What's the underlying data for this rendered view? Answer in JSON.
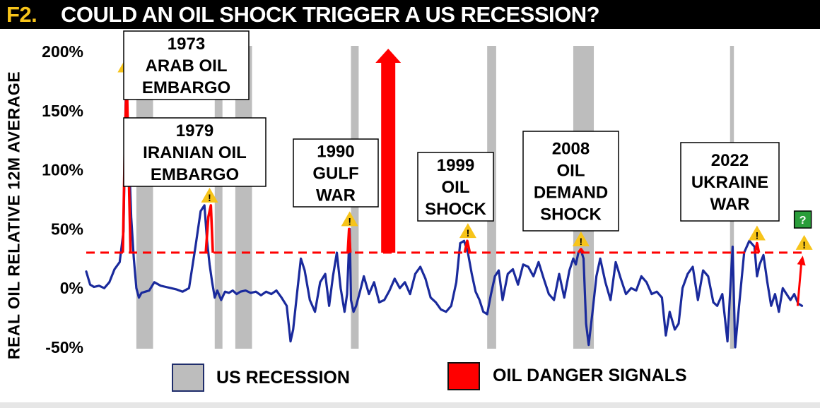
{
  "title": {
    "prefix": "F2.",
    "text": "COULD AN OIL SHOCK TRIGGER A US RECESSION?"
  },
  "chart_data": {
    "type": "line",
    "title": "COULD AN OIL SHOCK TRIGGER A US RECESSION?",
    "ylabel": "REAL OIL RELATIVE 12M AVERAGE",
    "xlabel": "",
    "ylim": [
      -50,
      200
    ],
    "yticks": [
      200,
      150,
      100,
      50,
      0,
      -50
    ],
    "ytick_labels": [
      "200%",
      "150%",
      "100%",
      "50%",
      "0%",
      "-50%"
    ],
    "xlim": [
      1970,
      2026
    ],
    "threshold": 30,
    "series": [
      {
        "name": "REAL OIL RELATIVE 12M AVERAGE",
        "color": "#1a2a9c",
        "x": [
          1970.0,
          1970.3,
          1970.6,
          1971.0,
          1971.4,
          1971.8,
          1972.2,
          1972.6,
          1972.9,
          1973.1,
          1973.3,
          1973.5,
          1973.7,
          1973.9,
          1974.1,
          1974.3,
          1974.6,
          1974.9,
          1975.3,
          1975.8,
          1976.2,
          1976.6,
          1977.0,
          1977.5,
          1978.0,
          1978.5,
          1978.9,
          1979.2,
          1979.4,
          1979.6,
          1979.8,
          1980.0,
          1980.2,
          1980.5,
          1980.8,
          1981.1,
          1981.4,
          1981.7,
          1982.0,
          1982.4,
          1982.8,
          1983.2,
          1983.6,
          1984.0,
          1984.4,
          1984.8,
          1985.2,
          1985.6,
          1985.9,
          1986.1,
          1986.4,
          1986.7,
          1987.0,
          1987.4,
          1987.8,
          1988.2,
          1988.6,
          1988.9,
          1989.2,
          1989.5,
          1989.8,
          1990.1,
          1990.3,
          1990.5,
          1990.6,
          1990.8,
          1991.0,
          1991.3,
          1991.6,
          1992.0,
          1992.4,
          1992.8,
          1993.2,
          1993.6,
          1994.0,
          1994.4,
          1994.8,
          1995.2,
          1995.6,
          1996.0,
          1996.4,
          1996.8,
          1997.2,
          1997.6,
          1998.0,
          1998.4,
          1998.8,
          1999.1,
          1999.4,
          1999.7,
          2000.0,
          2000.3,
          2000.6,
          2000.9,
          2001.2,
          2001.5,
          2001.8,
          2002.1,
          2002.4,
          2002.8,
          2003.2,
          2003.6,
          2004.0,
          2004.4,
          2004.8,
          2005.2,
          2005.6,
          2006.0,
          2006.4,
          2006.8,
          2007.2,
          2007.6,
          2007.9,
          2008.1,
          2008.3,
          2008.5,
          2008.7,
          2008.9,
          2009.1,
          2009.4,
          2009.7,
          2010.0,
          2010.4,
          2010.8,
          2011.2,
          2011.6,
          2012.0,
          2012.4,
          2012.8,
          2013.2,
          2013.6,
          2014.0,
          2014.4,
          2014.8,
          2015.1,
          2015.4,
          2015.8,
          2016.1,
          2016.4,
          2016.8,
          2017.2,
          2017.6,
          2018.0,
          2018.4,
          2018.8,
          2019.1,
          2019.5,
          2019.9,
          2020.1,
          2020.3,
          2020.5,
          2020.8,
          2021.2,
          2021.6,
          2022.0,
          2022.2,
          2022.4,
          2022.7,
          2023.0,
          2023.3,
          2023.6,
          2023.9,
          2024.2,
          2024.5,
          2024.8,
          2025.1,
          2025.4,
          2025.7
        ],
        "y": [
          14,
          3,
          1,
          2,
          0,
          5,
          16,
          22,
          48,
          180,
          120,
          60,
          25,
          0,
          -8,
          -4,
          -3,
          -2,
          5,
          2,
          1,
          0,
          -1,
          -3,
          0,
          35,
          65,
          70,
          40,
          20,
          5,
          -8,
          -2,
          -10,
          -3,
          -4,
          -2,
          -5,
          -3,
          -2,
          -4,
          -3,
          -6,
          -3,
          -5,
          -2,
          -8,
          -15,
          -45,
          -35,
          -5,
          25,
          15,
          -10,
          -20,
          5,
          12,
          -15,
          10,
          30,
          0,
          -20,
          -5,
          50,
          -10,
          -20,
          -15,
          -3,
          10,
          -5,
          5,
          -12,
          -10,
          -2,
          8,
          0,
          5,
          -5,
          12,
          18,
          8,
          -8,
          -12,
          -18,
          -20,
          -15,
          5,
          38,
          40,
          30,
          12,
          -3,
          -10,
          -20,
          -22,
          -5,
          10,
          15,
          -10,
          12,
          16,
          3,
          20,
          18,
          10,
          22,
          8,
          -5,
          -10,
          12,
          -8,
          15,
          25,
          20,
          30,
          32,
          25,
          -30,
          -48,
          -20,
          10,
          25,
          5,
          -10,
          22,
          8,
          -5,
          0,
          -2,
          10,
          5,
          -5,
          -3,
          -8,
          -40,
          -20,
          -35,
          -30,
          0,
          12,
          18,
          -10,
          15,
          10,
          -12,
          -15,
          -5,
          -45,
          -5,
          35,
          -50,
          -15,
          30,
          40,
          35,
          10,
          20,
          28,
          5,
          -15,
          -5,
          -20,
          0,
          -5,
          -10,
          -5,
          -13,
          -15
        ],
        "markers_danger": [
          1973.1,
          1979.6,
          1990.5,
          1999.7,
          2008.5,
          2022.2
        ]
      },
      {
        "name": "OIL DANGER SIGNALS",
        "color": "#ff0000",
        "segments": [
          {
            "x": [
              1972.85,
              1973.0,
              1973.15,
              1973.3,
              1973.45
            ],
            "y": [
              30,
              120,
              180,
              100,
              30
            ]
          },
          {
            "x": [
              1979.3,
              1979.5,
              1979.7,
              1979.85
            ],
            "y": [
              30,
              60,
              70,
              30
            ]
          },
          {
            "x": [
              1990.35,
              1990.45,
              1990.55
            ],
            "y": [
              30,
              50,
              30
            ]
          },
          {
            "x": [
              1999.45,
              1999.65,
              1999.85
            ],
            "y": [
              30,
              40,
              30
            ]
          },
          {
            "x": [
              2008.3,
              2008.5,
              2008.7
            ],
            "y": [
              30,
              33,
              30
            ]
          },
          {
            "x": [
              2022.05,
              2022.2,
              2022.35
            ],
            "y": [
              30,
              38,
              30
            ]
          }
        ]
      }
    ],
    "recessions": [
      [
        1973.9,
        1975.2
      ],
      [
        1980.0,
        1980.6
      ],
      [
        1981.6,
        1982.9
      ],
      [
        1990.6,
        1991.2
      ],
      [
        2001.2,
        2001.9
      ],
      [
        2007.9,
        2009.5
      ],
      [
        2020.1,
        2020.4
      ]
    ],
    "forecast_arrow": {
      "x": [
        2025.8,
        2026.2
      ],
      "y": [
        -15,
        25
      ],
      "color": "#ff0000"
    },
    "big_arrow": {
      "x": 1993.5,
      "y_from": 30,
      "y_to": 200,
      "color": "#ff0000"
    },
    "annotations": [
      {
        "lines": [
          "1973",
          "ARAB OIL",
          "EMBARGO"
        ],
        "x": 1973.1
      },
      {
        "lines": [
          "1979",
          "IRANIAN OIL",
          "EMBARGO"
        ],
        "x": 1979.6
      },
      {
        "lines": [
          "1990",
          "GULF",
          "WAR"
        ],
        "x": 1990.5
      },
      {
        "lines": [
          "1999",
          "OIL",
          "SHOCK"
        ],
        "x": 1999.7
      },
      {
        "lines": [
          "2008",
          "OIL",
          "DEMAND",
          "SHOCK"
        ],
        "x": 2008.5
      },
      {
        "lines": [
          "2022",
          "UKRAINE",
          "WAR"
        ],
        "x": 2022.2
      }
    ],
    "question_marker": "?",
    "legend": [
      {
        "label": "US RECESSION",
        "color": "#bdbdbd"
      },
      {
        "label": "OIL DANGER SIGNALS",
        "color": "#ff0000"
      }
    ],
    "grid": false
  },
  "legend": {
    "recession_label": "US RECESSION",
    "oil_label": "OIL DANGER SIGNALS"
  },
  "colors": {
    "title_prefix": "#f7c41a",
    "line": "#1a2a9c",
    "danger": "#ff0000",
    "recession": "#bdbdbd",
    "warning": "#f7c41a",
    "question_box": "#2a9d3a"
  }
}
